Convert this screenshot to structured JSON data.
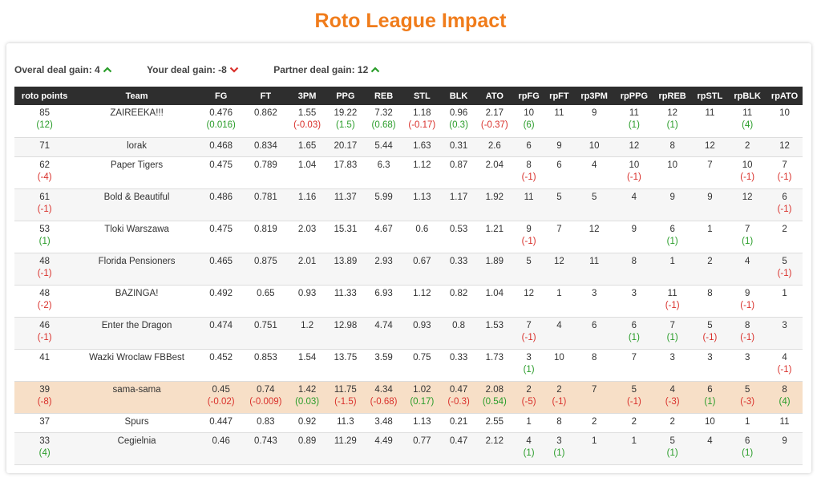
{
  "title": "Roto League Impact",
  "gains": [
    {
      "label": "Overal deal gain: 4",
      "dir": "up"
    },
    {
      "label": "Your deal gain: -8",
      "dir": "down"
    },
    {
      "label": "Partner deal gain: 12",
      "dir": "up"
    }
  ],
  "columns": [
    "roto points",
    "Team",
    "FG",
    "FT",
    "3PM",
    "PPG",
    "REB",
    "STL",
    "BLK",
    "ATO",
    "rpFG",
    "rpFT",
    "rp3PM",
    "rpPPG",
    "rpREB",
    "rpSTL",
    "rpBLK",
    "rpATO"
  ],
  "rows": [
    {
      "highlight": false,
      "cells": [
        [
          "85",
          "(12)"
        ],
        [
          "ZAIREEKA!!!",
          ""
        ],
        [
          "0.476",
          "(0.016)"
        ],
        [
          "0.862",
          ""
        ],
        [
          "1.55",
          "(-0.03)"
        ],
        [
          "19.22",
          "(1.5)"
        ],
        [
          "7.32",
          "(0.68)"
        ],
        [
          "1.18",
          "(-0.17)"
        ],
        [
          "0.96",
          "(0.3)"
        ],
        [
          "2.17",
          "(-0.37)"
        ],
        [
          "10",
          "(6)"
        ],
        [
          "11",
          ""
        ],
        [
          "9",
          ""
        ],
        [
          "11",
          "(1)"
        ],
        [
          "12",
          "(1)"
        ],
        [
          "11",
          ""
        ],
        [
          "11",
          "(4)"
        ],
        [
          "10",
          ""
        ]
      ]
    },
    {
      "highlight": false,
      "cells": [
        [
          "71",
          ""
        ],
        [
          "lorak",
          ""
        ],
        [
          "0.468",
          ""
        ],
        [
          "0.834",
          ""
        ],
        [
          "1.65",
          ""
        ],
        [
          "20.17",
          ""
        ],
        [
          "5.44",
          ""
        ],
        [
          "1.63",
          ""
        ],
        [
          "0.31",
          ""
        ],
        [
          "2.6",
          ""
        ],
        [
          "6",
          ""
        ],
        [
          "9",
          ""
        ],
        [
          "10",
          ""
        ],
        [
          "12",
          ""
        ],
        [
          "8",
          ""
        ],
        [
          "12",
          ""
        ],
        [
          "2",
          ""
        ],
        [
          "12",
          ""
        ]
      ]
    },
    {
      "highlight": false,
      "cells": [
        [
          "62",
          "(-4)"
        ],
        [
          "Paper Tigers",
          ""
        ],
        [
          "0.475",
          ""
        ],
        [
          "0.789",
          ""
        ],
        [
          "1.04",
          ""
        ],
        [
          "17.83",
          ""
        ],
        [
          "6.3",
          ""
        ],
        [
          "1.12",
          ""
        ],
        [
          "0.87",
          ""
        ],
        [
          "2.04",
          ""
        ],
        [
          "8",
          "(-1)"
        ],
        [
          "6",
          ""
        ],
        [
          "4",
          ""
        ],
        [
          "10",
          "(-1)"
        ],
        [
          "10",
          ""
        ],
        [
          "7",
          ""
        ],
        [
          "10",
          "(-1)"
        ],
        [
          "7",
          "(-1)"
        ]
      ]
    },
    {
      "highlight": false,
      "cells": [
        [
          "61",
          "(-1)"
        ],
        [
          "Bold & Beautiful",
          ""
        ],
        [
          "0.486",
          ""
        ],
        [
          "0.781",
          ""
        ],
        [
          "1.16",
          ""
        ],
        [
          "11.37",
          ""
        ],
        [
          "5.99",
          ""
        ],
        [
          "1.13",
          ""
        ],
        [
          "1.17",
          ""
        ],
        [
          "1.92",
          ""
        ],
        [
          "11",
          ""
        ],
        [
          "5",
          ""
        ],
        [
          "5",
          ""
        ],
        [
          "4",
          ""
        ],
        [
          "9",
          ""
        ],
        [
          "9",
          ""
        ],
        [
          "12",
          ""
        ],
        [
          "6",
          "(-1)"
        ]
      ]
    },
    {
      "highlight": false,
      "cells": [
        [
          "53",
          "(1)"
        ],
        [
          "Tloki Warszawa",
          ""
        ],
        [
          "0.475",
          ""
        ],
        [
          "0.819",
          ""
        ],
        [
          "2.03",
          ""
        ],
        [
          "15.31",
          ""
        ],
        [
          "4.67",
          ""
        ],
        [
          "0.6",
          ""
        ],
        [
          "0.53",
          ""
        ],
        [
          "1.21",
          ""
        ],
        [
          "9",
          "(-1)"
        ],
        [
          "7",
          ""
        ],
        [
          "12",
          ""
        ],
        [
          "9",
          ""
        ],
        [
          "6",
          "(1)"
        ],
        [
          "1",
          ""
        ],
        [
          "7",
          "(1)"
        ],
        [
          "2",
          ""
        ]
      ]
    },
    {
      "highlight": false,
      "cells": [
        [
          "48",
          "(-1)"
        ],
        [
          "Florida Pensioners",
          ""
        ],
        [
          "0.465",
          ""
        ],
        [
          "0.875",
          ""
        ],
        [
          "2.01",
          ""
        ],
        [
          "13.89",
          ""
        ],
        [
          "2.93",
          ""
        ],
        [
          "0.67",
          ""
        ],
        [
          "0.33",
          ""
        ],
        [
          "1.89",
          ""
        ],
        [
          "5",
          ""
        ],
        [
          "12",
          ""
        ],
        [
          "11",
          ""
        ],
        [
          "8",
          ""
        ],
        [
          "1",
          ""
        ],
        [
          "2",
          ""
        ],
        [
          "4",
          ""
        ],
        [
          "5",
          "(-1)"
        ]
      ]
    },
    {
      "highlight": false,
      "cells": [
        [
          "48",
          "(-2)"
        ],
        [
          "BAZINGA!",
          ""
        ],
        [
          "0.492",
          ""
        ],
        [
          "0.65",
          ""
        ],
        [
          "0.93",
          ""
        ],
        [
          "11.33",
          ""
        ],
        [
          "6.93",
          ""
        ],
        [
          "1.12",
          ""
        ],
        [
          "0.82",
          ""
        ],
        [
          "1.04",
          ""
        ],
        [
          "12",
          ""
        ],
        [
          "1",
          ""
        ],
        [
          "3",
          ""
        ],
        [
          "3",
          ""
        ],
        [
          "11",
          "(-1)"
        ],
        [
          "8",
          ""
        ],
        [
          "9",
          "(-1)"
        ],
        [
          "1",
          ""
        ]
      ]
    },
    {
      "highlight": false,
      "cells": [
        [
          "46",
          "(-1)"
        ],
        [
          "Enter the Dragon",
          ""
        ],
        [
          "0.474",
          ""
        ],
        [
          "0.751",
          ""
        ],
        [
          "1.2",
          ""
        ],
        [
          "12.98",
          ""
        ],
        [
          "4.74",
          ""
        ],
        [
          "0.93",
          ""
        ],
        [
          "0.8",
          ""
        ],
        [
          "1.53",
          ""
        ],
        [
          "7",
          "(-1)"
        ],
        [
          "4",
          ""
        ],
        [
          "6",
          ""
        ],
        [
          "6",
          "(1)"
        ],
        [
          "7",
          "(1)"
        ],
        [
          "5",
          "(-1)"
        ],
        [
          "8",
          "(-1)"
        ],
        [
          "3",
          ""
        ]
      ]
    },
    {
      "highlight": false,
      "cells": [
        [
          "41",
          ""
        ],
        [
          "Wazki Wroclaw FBBest",
          ""
        ],
        [
          "0.452",
          ""
        ],
        [
          "0.853",
          ""
        ],
        [
          "1.54",
          ""
        ],
        [
          "13.75",
          ""
        ],
        [
          "3.59",
          ""
        ],
        [
          "0.75",
          ""
        ],
        [
          "0.33",
          ""
        ],
        [
          "1.73",
          ""
        ],
        [
          "3",
          "(1)"
        ],
        [
          "10",
          ""
        ],
        [
          "8",
          ""
        ],
        [
          "7",
          ""
        ],
        [
          "3",
          ""
        ],
        [
          "3",
          ""
        ],
        [
          "3",
          ""
        ],
        [
          "4",
          "(-1)"
        ]
      ]
    },
    {
      "highlight": true,
      "cells": [
        [
          "39",
          "(-8)"
        ],
        [
          "sama-sama",
          ""
        ],
        [
          "0.45",
          "(-0.02)"
        ],
        [
          "0.74",
          "(-0.009)"
        ],
        [
          "1.42",
          "(0.03)"
        ],
        [
          "11.75",
          "(-1.5)"
        ],
        [
          "4.34",
          "(-0.68)"
        ],
        [
          "1.02",
          "(0.17)"
        ],
        [
          "0.47",
          "(-0.3)"
        ],
        [
          "2.08",
          "(0.54)"
        ],
        [
          "2",
          "(-5)"
        ],
        [
          "2",
          "(-1)"
        ],
        [
          "7",
          ""
        ],
        [
          "5",
          "(-1)"
        ],
        [
          "4",
          "(-3)"
        ],
        [
          "6",
          "(1)"
        ],
        [
          "5",
          "(-3)"
        ],
        [
          "8",
          "(4)"
        ]
      ]
    },
    {
      "highlight": false,
      "cells": [
        [
          "37",
          ""
        ],
        [
          "Spurs",
          ""
        ],
        [
          "0.447",
          ""
        ],
        [
          "0.83",
          ""
        ],
        [
          "0.92",
          ""
        ],
        [
          "11.3",
          ""
        ],
        [
          "3.48",
          ""
        ],
        [
          "1.13",
          ""
        ],
        [
          "0.21",
          ""
        ],
        [
          "2.55",
          ""
        ],
        [
          "1",
          ""
        ],
        [
          "8",
          ""
        ],
        [
          "2",
          ""
        ],
        [
          "2",
          ""
        ],
        [
          "2",
          ""
        ],
        [
          "10",
          ""
        ],
        [
          "1",
          ""
        ],
        [
          "11",
          ""
        ]
      ]
    },
    {
      "highlight": false,
      "cells": [
        [
          "33",
          "(4)"
        ],
        [
          "Cegielnia",
          ""
        ],
        [
          "0.46",
          ""
        ],
        [
          "0.743",
          ""
        ],
        [
          "0.89",
          ""
        ],
        [
          "11.29",
          ""
        ],
        [
          "4.49",
          ""
        ],
        [
          "0.77",
          ""
        ],
        [
          "0.47",
          ""
        ],
        [
          "2.12",
          ""
        ],
        [
          "4",
          "(1)"
        ],
        [
          "3",
          "(1)"
        ],
        [
          "1",
          ""
        ],
        [
          "1",
          ""
        ],
        [
          "5",
          "(1)"
        ],
        [
          "4",
          ""
        ],
        [
          "6",
          "(1)"
        ],
        [
          "9",
          ""
        ]
      ]
    }
  ],
  "colors": {
    "accent": "#f07c1b",
    "positive": "#2a9d2a",
    "negative": "#d9302b",
    "highlight": "#f7dfc7",
    "header": "#2e2e2e"
  }
}
